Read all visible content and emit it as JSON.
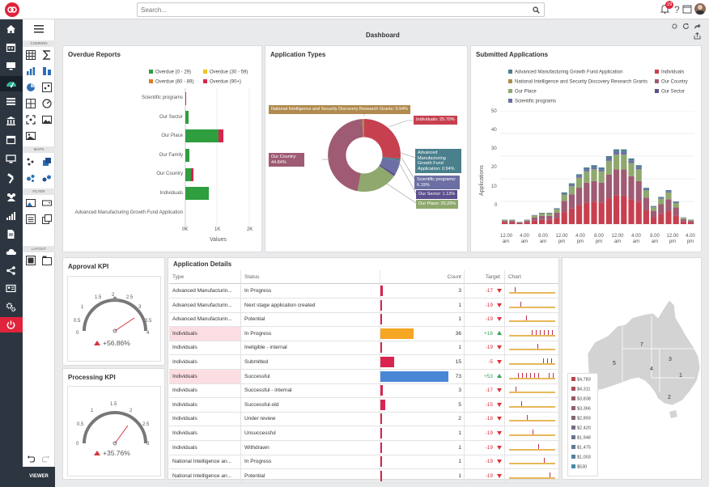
{
  "search": {
    "placeholder": "Search..."
  },
  "notifications": {
    "count": "19"
  },
  "toolpanel": {
    "common": "COMMON",
    "maps": "MAPS",
    "filter": "FILTER",
    "layout": "LAYOUT",
    "viewer": "VIEWER"
  },
  "dashboard": {
    "title": "Dashboard"
  },
  "overdue": {
    "title": "Overdue Reports",
    "legend": [
      "Overdue (0 - 29)",
      "Overdue (30 - 59)",
      "Overdue (60 - 89)",
      "Overdue (90+)"
    ],
    "legend_colors": [
      "#2e9e3e",
      "#f0c419",
      "#e07b1e",
      "#d9244f"
    ],
    "categories": [
      "Scientific programs",
      "Our Sector",
      "Our Place",
      "Our Family",
      "Our Country",
      "Individuals",
      "Advanced Manufacturing Growth Fund Application"
    ],
    "ticks": [
      "0K",
      "1K",
      "2K"
    ],
    "xlabel": "Values"
  },
  "apptypes": {
    "title": "Application Types",
    "labels": {
      "nisdrg": "National Intelligence and Security Discovery Research Grants: 0.94%",
      "individuals": "Individuals: 25.70%",
      "country": "Our Country: 44.84%",
      "amgf": "Advanced Manufacturing Growth Fund Application: 0.94%",
      "scientific": "Scientific programs: 6.19%",
      "sector": "Our Sector: 1.13%",
      "place": "Our Place: 20.26%"
    }
  },
  "submitted": {
    "title": "Submitted Applications",
    "legend": [
      "Advanced Manufacturing Growth Fund Application",
      "Individuals",
      "National Intelligence and Security Discovery Research Grants",
      "Our Country",
      "Our Place",
      "Our Sector",
      "Scientific programs"
    ],
    "ylabel": "Applications",
    "yticks": [
      "50",
      "40",
      "30",
      "20",
      "10",
      "0"
    ],
    "xticks": [
      "12.00 am",
      "4.00 am",
      "8.00 am",
      "12.00 pm",
      "4.00 pm",
      "8.00 pm",
      "12.00 am",
      "4.00 am",
      "8.00 am",
      "12.00 pm",
      "4.00 pm"
    ]
  },
  "approval": {
    "title": "Approval KPI",
    "value": "+56.86%",
    "ticks": [
      "0",
      "0.5",
      "1",
      "1.5",
      "2",
      "2.5",
      "3",
      "3.5",
      "4"
    ]
  },
  "processing": {
    "title": "Processing KPI",
    "value": "+35.76%",
    "ticks": [
      "0",
      "0.5",
      "1",
      "1.5",
      "2",
      "2.5",
      "3"
    ]
  },
  "details": {
    "title": "Application Details",
    "headers": {
      "type": "Type",
      "status": "Status",
      "count": "Count",
      "target": "Target",
      "chart": "Chart"
    },
    "rows": [
      {
        "type": "Advanced Manufacturin...",
        "status": "In Progress",
        "count": "3",
        "target": "-17"
      },
      {
        "type": "Advanced Manufacturin...",
        "status": "Next stage application created",
        "count": "1",
        "target": "-19"
      },
      {
        "type": "Advanced Manufacturin...",
        "status": "Potential",
        "count": "1",
        "target": "-19"
      },
      {
        "type": "Individuals",
        "status": "In Progress",
        "count": "36",
        "target": "+16"
      },
      {
        "type": "Individuals",
        "status": "Ineligible - internal",
        "count": "1",
        "target": "-19"
      },
      {
        "type": "Individuals",
        "status": "Submitted",
        "count": "15",
        "target": "-5"
      },
      {
        "type": "Individuals",
        "status": "Successful",
        "count": "73",
        "target": "+53"
      },
      {
        "type": "Individuals",
        "status": "Successful - internal",
        "count": "3",
        "target": "-17"
      },
      {
        "type": "Individuals",
        "status": "Successful-old",
        "count": "5",
        "target": "-15"
      },
      {
        "type": "Individuals",
        "status": "Under review",
        "count": "2",
        "target": "-18"
      },
      {
        "type": "Individuals",
        "status": "Unsuccessful",
        "count": "1",
        "target": "-19"
      },
      {
        "type": "Individuals",
        "status": "Withdrawn",
        "count": "1",
        "target": "-19"
      },
      {
        "type": "National Intelligence an...",
        "status": "In Progress",
        "count": "1",
        "target": "-19"
      },
      {
        "type": "National Intelligence an...",
        "status": "Potential",
        "count": "1",
        "target": "-19"
      }
    ]
  },
  "map": {
    "regions": [
      "7",
      "3",
      "5",
      "4",
      "1",
      "2"
    ],
    "legend": [
      "$4,783",
      "$4,311",
      "$3,838",
      "$3,366",
      "$2,893",
      "$2,420",
      "$1,948",
      "$1,475",
      "$1,003",
      "$530"
    ]
  },
  "colors": {
    "brand": "#e0243c",
    "nav": "#2d3640",
    "good": "#3aa35a",
    "bad": "#d9333f"
  }
}
